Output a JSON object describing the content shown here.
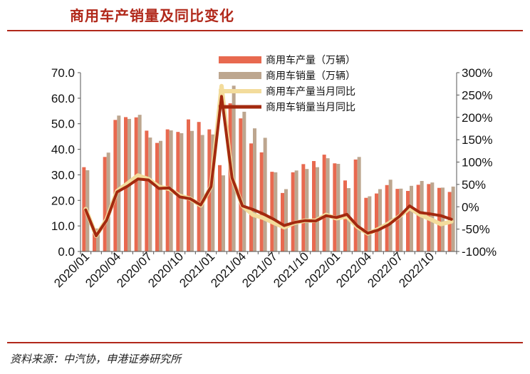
{
  "page": {
    "title": "商用车产销量及同比变化",
    "source": "资料来源：中汽协，申港证券研究所"
  },
  "colors": {
    "accent": "#b1281a",
    "production_bar": "#e8694f",
    "sales_bar": "#bda68f",
    "production_yoy_line": "#f3dc9c",
    "sales_yoy_line": "#a3290f"
  },
  "chart_data": {
    "type": "bar",
    "title": "",
    "xlabel": "",
    "ylabel_left": "",
    "ylabel_right": "",
    "ylim_left": [
      0,
      70
    ],
    "yticks_left": [
      "0.0",
      "10.0",
      "20.0",
      "30.0",
      "40.0",
      "50.0",
      "60.0",
      "70.0"
    ],
    "ylim_right": [
      -100,
      300
    ],
    "yticks_right": [
      "-100%",
      "-50%",
      "0%",
      "50%",
      "100%",
      "150%",
      "200%",
      "250%",
      "300%"
    ],
    "legend_position": "top-center",
    "x": [
      "2020/01",
      "2020/02",
      "2020/03",
      "2020/04",
      "2020/05",
      "2020/06",
      "2020/07",
      "2020/08",
      "2020/09",
      "2020/10",
      "2020/11",
      "2020/12",
      "2021/01",
      "2021/02",
      "2021/03",
      "2021/04",
      "2021/05",
      "2021/06",
      "2021/07",
      "2021/08",
      "2021/09",
      "2021/10",
      "2021/11",
      "2021/12",
      "2022/01",
      "2022/02",
      "2022/03",
      "2022/04",
      "2022/05",
      "2022/06",
      "2022/07",
      "2022/08",
      "2022/09",
      "2022/10",
      "2022/11",
      "2022/12"
    ],
    "xtick_labels": [
      "2020/01",
      "2020/04",
      "2020/07",
      "2020/10",
      "2021/01",
      "2021/04",
      "2021/07",
      "2021/10",
      "2022/01",
      "2022/04",
      "2022/07",
      "2022/10"
    ],
    "series": [
      {
        "name": "商用车产量（万辆）",
        "axis": "left",
        "kind": "bar",
        "values": [
          33.0,
          9.0,
          37.0,
          51.5,
          52.6,
          52.5,
          47.3,
          42.5,
          47.8,
          46.8,
          51.7,
          50.7,
          47.8,
          33.8,
          58.0,
          52.1,
          42.3,
          38.8,
          31.2,
          22.9,
          31.0,
          34.2,
          35.4,
          37.9,
          34.5,
          27.8,
          36.0,
          21.0,
          22.7,
          26.0,
          24.5,
          23.7,
          26.1,
          26.4,
          24.9,
          23.3
        ]
      },
      {
        "name": "商用车销量（万辆）",
        "axis": "left",
        "kind": "bar",
        "values": [
          31.8,
          9.0,
          38.7,
          53.2,
          51.9,
          53.5,
          44.6,
          43.3,
          47.4,
          46.3,
          47.2,
          45.6,
          45.8,
          29.8,
          64.9,
          54.7,
          48.2,
          44.5,
          31.0,
          24.4,
          31.7,
          32.3,
          33.0,
          36.5,
          34.3,
          24.8,
          37.0,
          21.6,
          24.4,
          28.1,
          24.6,
          25.7,
          27.6,
          27.0,
          25.0,
          25.4
        ]
      },
      {
        "name": "商用车产量当月同比",
        "axis": "right",
        "kind": "line",
        "values": [
          -5,
          -65,
          -28,
          35,
          52,
          70,
          62,
          45,
          40,
          25,
          18,
          3,
          45,
          270,
          65,
          2,
          -18,
          -25,
          -36,
          -46,
          -36,
          -31,
          -31,
          -18,
          -26,
          -22,
          -45,
          -60,
          -50,
          -37,
          -22,
          -3,
          -18,
          -28,
          -39,
          -33
        ]
      },
      {
        "name": "商用车销量当月同比",
        "axis": "right",
        "kind": "line",
        "values": [
          -7,
          -65,
          -30,
          33,
          46,
          62,
          60,
          41,
          42,
          22,
          18,
          4,
          45,
          247,
          65,
          2,
          -6,
          -16,
          -28,
          -42,
          -35,
          -31,
          -32,
          -20,
          -24,
          -17,
          -43,
          -59,
          -52,
          -40,
          -22,
          2,
          -13,
          -16,
          -20,
          -28
        ]
      }
    ]
  }
}
